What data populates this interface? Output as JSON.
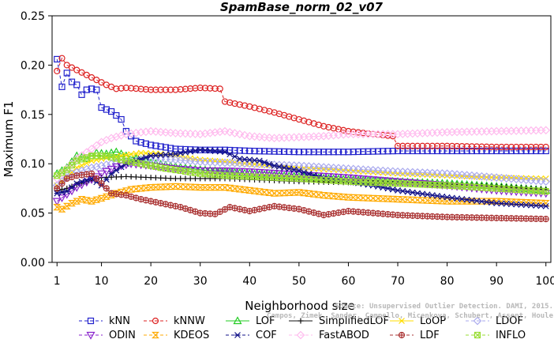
{
  "chart_data": {
    "type": "line",
    "title": "SpamBase_norm_02_v07",
    "xlabel": "Neighborhood size",
    "ylabel": "Maximum F1",
    "xlim": [
      0,
      101
    ],
    "ylim": [
      0,
      0.25
    ],
    "xticks": [
      1,
      10,
      20,
      30,
      40,
      50,
      60,
      70,
      80,
      90,
      100
    ],
    "yticks": [
      "0.00",
      "0.05",
      "0.10",
      "0.15",
      "0.20",
      "0.25"
    ],
    "legend_position": "bottom",
    "watermark": [
      "Source: Unsupervised Outlier Detection. DAMI, 2015.",
      "Campos, Zimek, Sander, Campello, Micenkova, Schubert, Assent, Houle"
    ],
    "series": [
      {
        "name": "kNN",
        "color": "#2222cc",
        "dash": "4,3",
        "marker": "square",
        "every": 1,
        "points": [
          [
            1,
            0.206
          ],
          [
            2,
            0.178
          ],
          [
            3,
            0.192
          ],
          [
            4,
            0.183
          ],
          [
            5,
            0.18
          ],
          [
            6,
            0.17
          ],
          [
            7,
            0.175
          ],
          [
            8,
            0.176
          ],
          [
            9,
            0.175
          ],
          [
            10,
            0.157
          ],
          [
            12,
            0.153
          ],
          [
            14,
            0.145
          ],
          [
            15,
            0.133
          ],
          [
            17,
            0.123
          ],
          [
            20,
            0.119
          ],
          [
            25,
            0.115
          ],
          [
            30,
            0.114
          ],
          [
            35,
            0.114
          ],
          [
            40,
            0.113
          ],
          [
            50,
            0.112
          ],
          [
            60,
            0.112
          ],
          [
            70,
            0.113
          ],
          [
            80,
            0.113
          ],
          [
            90,
            0.113
          ],
          [
            100,
            0.113
          ]
        ]
      },
      {
        "name": "kNNW",
        "color": "#dd2222",
        "dash": "4,3",
        "marker": "circle",
        "every": 1,
        "points": [
          [
            1,
            0.194
          ],
          [
            2,
            0.207
          ],
          [
            3,
            0.2
          ],
          [
            5,
            0.195
          ],
          [
            7,
            0.19
          ],
          [
            9,
            0.185
          ],
          [
            11,
            0.18
          ],
          [
            13,
            0.176
          ],
          [
            15,
            0.177
          ],
          [
            20,
            0.175
          ],
          [
            25,
            0.175
          ],
          [
            30,
            0.177
          ],
          [
            34,
            0.176
          ],
          [
            35,
            0.163
          ],
          [
            40,
            0.158
          ],
          [
            45,
            0.152
          ],
          [
            50,
            0.145
          ],
          [
            55,
            0.138
          ],
          [
            60,
            0.133
          ],
          [
            65,
            0.13
          ],
          [
            69,
            0.128
          ],
          [
            70,
            0.118
          ],
          [
            80,
            0.118
          ],
          [
            90,
            0.117
          ],
          [
            100,
            0.117
          ]
        ]
      },
      {
        "name": "LOF",
        "color": "#22cc22",
        "dash": "",
        "marker": "triangle",
        "every": 1,
        "points": [
          [
            1,
            0.09
          ],
          [
            3,
            0.096
          ],
          [
            5,
            0.108
          ],
          [
            7,
            0.105
          ],
          [
            9,
            0.111
          ],
          [
            11,
            0.11
          ],
          [
            13,
            0.112
          ],
          [
            15,
            0.108
          ],
          [
            18,
            0.104
          ],
          [
            20,
            0.101
          ],
          [
            25,
            0.097
          ],
          [
            30,
            0.094
          ],
          [
            35,
            0.092
          ],
          [
            40,
            0.09
          ],
          [
            50,
            0.087
          ],
          [
            60,
            0.084
          ],
          [
            70,
            0.082
          ],
          [
            80,
            0.08
          ],
          [
            90,
            0.077
          ],
          [
            100,
            0.073
          ]
        ]
      },
      {
        "name": "SimplifiedLOF",
        "color": "#111111",
        "dash": "",
        "marker": "plus",
        "every": 1,
        "points": [
          [
            1,
            0.073
          ],
          [
            3,
            0.075
          ],
          [
            5,
            0.079
          ],
          [
            8,
            0.083
          ],
          [
            10,
            0.086
          ],
          [
            15,
            0.087
          ],
          [
            20,
            0.086
          ],
          [
            25,
            0.085
          ],
          [
            30,
            0.085
          ],
          [
            35,
            0.085
          ],
          [
            40,
            0.084
          ],
          [
            50,
            0.082
          ],
          [
            60,
            0.081
          ],
          [
            70,
            0.08
          ],
          [
            80,
            0.079
          ],
          [
            90,
            0.077
          ],
          [
            100,
            0.074
          ]
        ]
      },
      {
        "name": "LoOP",
        "color": "#ffdd00",
        "dash": "",
        "marker": "x",
        "every": 1,
        "points": [
          [
            1,
            0.078
          ],
          [
            3,
            0.087
          ],
          [
            5,
            0.096
          ],
          [
            8,
            0.103
          ],
          [
            11,
            0.106
          ],
          [
            14,
            0.108
          ],
          [
            18,
            0.111
          ],
          [
            22,
            0.11
          ],
          [
            26,
            0.107
          ],
          [
            30,
            0.104
          ],
          [
            35,
            0.102
          ],
          [
            40,
            0.1
          ],
          [
            50,
            0.096
          ],
          [
            60,
            0.093
          ],
          [
            70,
            0.09
          ],
          [
            80,
            0.088
          ],
          [
            90,
            0.086
          ],
          [
            100,
            0.085
          ]
        ]
      },
      {
        "name": "LDOF",
        "color": "#aaaaee",
        "dash": "4,3",
        "marker": "diamond",
        "every": 1,
        "points": [
          [
            1,
            0.078
          ],
          [
            4,
            0.09
          ],
          [
            8,
            0.096
          ],
          [
            12,
            0.1
          ],
          [
            16,
            0.102
          ],
          [
            20,
            0.105
          ],
          [
            25,
            0.104
          ],
          [
            30,
            0.102
          ],
          [
            35,
            0.101
          ],
          [
            40,
            0.1
          ],
          [
            50,
            0.098
          ],
          [
            60,
            0.095
          ],
          [
            70,
            0.092
          ],
          [
            80,
            0.09
          ],
          [
            90,
            0.086
          ],
          [
            100,
            0.082
          ]
        ]
      },
      {
        "name": "ODIN",
        "color": "#8822cc",
        "dash": "4,3",
        "marker": "triangle-down",
        "every": 1,
        "points": [
          [
            1,
            0.062
          ],
          [
            3,
            0.069
          ],
          [
            5,
            0.076
          ],
          [
            8,
            0.084
          ],
          [
            10,
            0.09
          ],
          [
            13,
            0.097
          ],
          [
            16,
            0.1
          ],
          [
            20,
            0.098
          ],
          [
            25,
            0.095
          ],
          [
            30,
            0.093
          ],
          [
            35,
            0.093
          ],
          [
            40,
            0.092
          ],
          [
            50,
            0.089
          ],
          [
            60,
            0.086
          ],
          [
            70,
            0.082
          ],
          [
            80,
            0.078
          ],
          [
            90,
            0.073
          ],
          [
            100,
            0.07
          ]
        ]
      },
      {
        "name": "KDEOS",
        "color": "#ffaa00",
        "dash": "4,3",
        "marker": "bowtie",
        "every": 1,
        "points": [
          [
            1,
            0.056
          ],
          [
            2,
            0.054
          ],
          [
            4,
            0.06
          ],
          [
            6,
            0.064
          ],
          [
            8,
            0.062
          ],
          [
            10,
            0.065
          ],
          [
            13,
            0.07
          ],
          [
            16,
            0.074
          ],
          [
            20,
            0.076
          ],
          [
            25,
            0.077
          ],
          [
            30,
            0.076
          ],
          [
            35,
            0.076
          ],
          [
            40,
            0.073
          ],
          [
            45,
            0.07
          ],
          [
            50,
            0.071
          ],
          [
            55,
            0.068
          ],
          [
            60,
            0.066
          ],
          [
            70,
            0.064
          ],
          [
            80,
            0.062
          ],
          [
            90,
            0.062
          ],
          [
            100,
            0.06
          ]
        ]
      },
      {
        "name": "COF",
        "color": "#111188",
        "dash": "4,3",
        "marker": "asterisk",
        "every": 1,
        "points": [
          [
            1,
            0.07
          ],
          [
            3,
            0.072
          ],
          [
            5,
            0.08
          ],
          [
            8,
            0.085
          ],
          [
            10,
            0.078
          ],
          [
            12,
            0.09
          ],
          [
            15,
            0.1
          ],
          [
            20,
            0.108
          ],
          [
            25,
            0.11
          ],
          [
            30,
            0.114
          ],
          [
            35,
            0.112
          ],
          [
            38,
            0.105
          ],
          [
            42,
            0.103
          ],
          [
            45,
            0.098
          ],
          [
            50,
            0.093
          ],
          [
            55,
            0.085
          ],
          [
            60,
            0.082
          ],
          [
            65,
            0.078
          ],
          [
            70,
            0.073
          ],
          [
            80,
            0.066
          ],
          [
            90,
            0.06
          ],
          [
            100,
            0.057
          ]
        ]
      },
      {
        "name": "FastABOD",
        "color": "#ffbbee",
        "dash": "4,3",
        "marker": "diamond",
        "every": 1,
        "points": [
          [
            1,
            0.085
          ],
          [
            3,
            0.095
          ],
          [
            5,
            0.105
          ],
          [
            8,
            0.115
          ],
          [
            10,
            0.122
          ],
          [
            12,
            0.126
          ],
          [
            15,
            0.13
          ],
          [
            20,
            0.133
          ],
          [
            25,
            0.131
          ],
          [
            30,
            0.13
          ],
          [
            35,
            0.133
          ],
          [
            40,
            0.128
          ],
          [
            45,
            0.126
          ],
          [
            50,
            0.127
          ],
          [
            55,
            0.128
          ],
          [
            60,
            0.13
          ],
          [
            65,
            0.13
          ],
          [
            70,
            0.13
          ],
          [
            80,
            0.132
          ],
          [
            90,
            0.133
          ],
          [
            100,
            0.134
          ]
        ]
      },
      {
        "name": "LDF",
        "color": "#aa3333",
        "dash": "4,3",
        "marker": "circle-cross",
        "every": 1,
        "points": [
          [
            1,
            0.075
          ],
          [
            3,
            0.085
          ],
          [
            5,
            0.088
          ],
          [
            8,
            0.09
          ],
          [
            10,
            0.08
          ],
          [
            12,
            0.07
          ],
          [
            15,
            0.068
          ],
          [
            18,
            0.064
          ],
          [
            22,
            0.06
          ],
          [
            26,
            0.056
          ],
          [
            30,
            0.05
          ],
          [
            33,
            0.049
          ],
          [
            36,
            0.056
          ],
          [
            40,
            0.052
          ],
          [
            45,
            0.057
          ],
          [
            50,
            0.054
          ],
          [
            55,
            0.048
          ],
          [
            60,
            0.052
          ],
          [
            65,
            0.05
          ],
          [
            70,
            0.048
          ],
          [
            80,
            0.046
          ],
          [
            90,
            0.045
          ],
          [
            100,
            0.044
          ]
        ]
      },
      {
        "name": "INFLO",
        "color": "#99dd33",
        "dash": "4,3",
        "marker": "square-x",
        "every": 1,
        "points": [
          [
            1,
            0.088
          ],
          [
            3,
            0.094
          ],
          [
            5,
            0.103
          ],
          [
            8,
            0.108
          ],
          [
            11,
            0.108
          ],
          [
            14,
            0.104
          ],
          [
            18,
            0.1
          ],
          [
            22,
            0.096
          ],
          [
            26,
            0.093
          ],
          [
            30,
            0.09
          ],
          [
            35,
            0.088
          ],
          [
            40,
            0.087
          ],
          [
            50,
            0.085
          ],
          [
            60,
            0.082
          ],
          [
            70,
            0.08
          ],
          [
            80,
            0.078
          ],
          [
            90,
            0.075
          ],
          [
            100,
            0.072
          ]
        ]
      }
    ]
  }
}
